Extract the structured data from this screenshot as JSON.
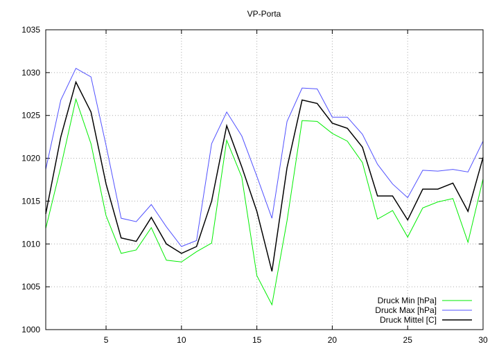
{
  "chart_data": {
    "type": "line",
    "title": "VP-Porta",
    "xlabel": "",
    "ylabel": "",
    "xlim": [
      1,
      30
    ],
    "ylim": [
      1000,
      1035
    ],
    "xticks": [
      5,
      10,
      15,
      20,
      25,
      30
    ],
    "yticks": [
      1000,
      1005,
      1010,
      1015,
      1020,
      1025,
      1030,
      1035
    ],
    "grid": true,
    "legend_position": "bottom-right",
    "x": [
      1,
      2,
      3,
      4,
      5,
      6,
      7,
      8,
      9,
      10,
      11,
      12,
      13,
      14,
      15,
      16,
      17,
      18,
      19,
      20,
      21,
      22,
      23,
      24,
      25,
      26,
      27,
      28,
      29,
      30
    ],
    "series": [
      {
        "name": "Druck Min [hPa]",
        "color": "#00ee00",
        "values": [
          1011.8,
          1019.0,
          1026.9,
          1021.7,
          1013.3,
          1008.9,
          1009.3,
          1011.9,
          1008.1,
          1007.9,
          1009.1,
          1010.1,
          1022.1,
          1017.8,
          1006.3,
          1002.9,
          1012.7,
          1024.4,
          1024.3,
          1022.9,
          1022.0,
          1019.5,
          1012.9,
          1013.9,
          1010.8,
          1014.2,
          1014.9,
          1015.3,
          1010.2,
          1017.6
        ]
      },
      {
        "name": "Druck Max [hPa]",
        "color": "#5050ff",
        "values": [
          1018.7,
          1026.8,
          1030.5,
          1029.5,
          1021.5,
          1013.0,
          1012.6,
          1014.6,
          1012.0,
          1009.7,
          1010.4,
          1021.7,
          1025.4,
          1022.6,
          1017.9,
          1013.0,
          1024.3,
          1028.2,
          1028.1,
          1024.8,
          1024.8,
          1022.8,
          1019.3,
          1017.0,
          1015.4,
          1018.6,
          1018.5,
          1018.7,
          1018.4,
          1022.0
        ]
      },
      {
        "name": "Druck Mittel [C]",
        "color": "#000000",
        "values": [
          1013.5,
          1022.5,
          1028.9,
          1025.4,
          1017.0,
          1010.7,
          1010.3,
          1013.1,
          1010.0,
          1008.9,
          1009.7,
          1015.0,
          1023.8,
          1019.0,
          1013.8,
          1006.8,
          1018.9,
          1026.8,
          1026.4,
          1024.1,
          1023.5,
          1021.3,
          1015.6,
          1015.6,
          1012.8,
          1016.4,
          1016.4,
          1017.1,
          1013.8,
          1020.1
        ]
      }
    ]
  }
}
